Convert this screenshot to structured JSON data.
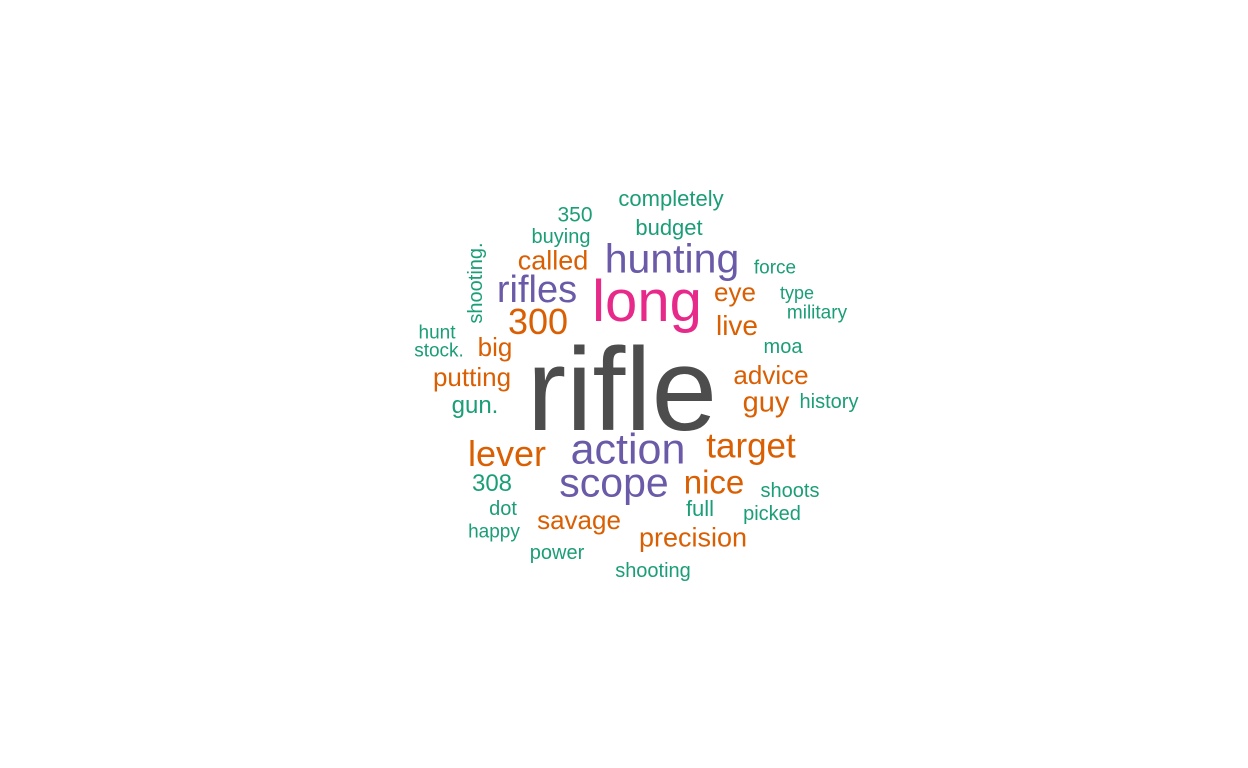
{
  "palette": {
    "top": "#4d4d4d",
    "second": "#e7298a",
    "third": "#6a5aa8",
    "fourth": "#d95f02",
    "fifth": "#1b9e77"
  },
  "words": [
    {
      "text": "rifle",
      "color": "top"
    },
    {
      "text": "long",
      "color": "second"
    },
    {
      "text": "hunting",
      "color": "third"
    },
    {
      "text": "rifles",
      "color": "third"
    },
    {
      "text": "action",
      "color": "third"
    },
    {
      "text": "scope",
      "color": "third"
    },
    {
      "text": "300",
      "color": "fourth"
    },
    {
      "text": "called",
      "color": "fourth"
    },
    {
      "text": "eye",
      "color": "fourth"
    },
    {
      "text": "live",
      "color": "fourth"
    },
    {
      "text": "big",
      "color": "fourth"
    },
    {
      "text": "putting",
      "color": "fourth"
    },
    {
      "text": "advice",
      "color": "fourth"
    },
    {
      "text": "guy",
      "color": "fourth"
    },
    {
      "text": "lever",
      "color": "fourth"
    },
    {
      "text": "target",
      "color": "fourth"
    },
    {
      "text": "nice",
      "color": "fourth"
    },
    {
      "text": "savage",
      "color": "fourth"
    },
    {
      "text": "precision",
      "color": "fourth"
    },
    {
      "text": "completely",
      "color": "fifth"
    },
    {
      "text": "350",
      "color": "fifth"
    },
    {
      "text": "budget",
      "color": "fifth"
    },
    {
      "text": "buying",
      "color": "fifth"
    },
    {
      "text": "shooting.",
      "color": "fifth"
    },
    {
      "text": "force",
      "color": "fifth"
    },
    {
      "text": "type",
      "color": "fifth"
    },
    {
      "text": "military",
      "color": "fifth"
    },
    {
      "text": "hunt",
      "color": "fifth"
    },
    {
      "text": "stock.",
      "color": "fifth"
    },
    {
      "text": "moa",
      "color": "fifth"
    },
    {
      "text": "gun.",
      "color": "fifth"
    },
    {
      "text": "history",
      "color": "fifth"
    },
    {
      "text": "308",
      "color": "fifth"
    },
    {
      "text": "shoots",
      "color": "fifth"
    },
    {
      "text": "dot",
      "color": "fifth"
    },
    {
      "text": "full",
      "color": "fifth"
    },
    {
      "text": "picked",
      "color": "fifth"
    },
    {
      "text": "happy",
      "color": "fifth"
    },
    {
      "text": "power",
      "color": "fifth"
    },
    {
      "text": "shooting",
      "color": "fifth"
    }
  ]
}
